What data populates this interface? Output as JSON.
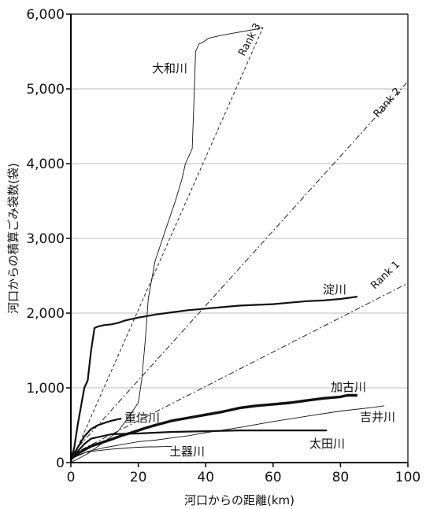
{
  "chart_data": {
    "type": "line",
    "xlabel": "河口からの距離(km)",
    "ylabel": "河口からの積算ごみ袋数(袋)",
    "xlim": [
      0,
      100
    ],
    "ylim": [
      0,
      6000
    ],
    "x_ticks": [
      "0",
      "20",
      "40",
      "60",
      "80",
      "100"
    ],
    "y_ticks": [
      "0",
      "1,000",
      "2,000",
      "3,000",
      "4,000",
      "5,000",
      "6,000"
    ],
    "grid": "horizontal",
    "reference_lines": [
      {
        "name": "Rank 1",
        "style": "dash-dot",
        "points": [
          [
            0,
            100
          ],
          [
            100,
            2400
          ]
        ]
      },
      {
        "name": "Rank 2",
        "style": "dash-dot",
        "points": [
          [
            0,
            100
          ],
          [
            100,
            5100
          ]
        ]
      },
      {
        "name": "Rank 3",
        "style": "dashed",
        "points": [
          [
            0,
            0
          ],
          [
            57,
            5820
          ]
        ]
      }
    ],
    "series": [
      {
        "name": "大和川",
        "weight": "thin",
        "x": [
          0,
          5,
          10,
          14,
          17,
          20,
          21,
          22,
          23,
          25,
          28,
          31,
          33,
          34,
          35,
          36,
          36.5,
          37,
          38,
          39,
          41,
          45,
          50,
          55,
          57
        ],
        "y": [
          0,
          120,
          280,
          420,
          600,
          800,
          1100,
          1600,
          2200,
          2700,
          3100,
          3500,
          3800,
          4000,
          4100,
          4200,
          4800,
          5500,
          5600,
          5620,
          5680,
          5720,
          5760,
          5800,
          5820
        ]
      },
      {
        "name": "淀川",
        "weight": "medium",
        "x": [
          0,
          1,
          2,
          3,
          4,
          5,
          6,
          7,
          8,
          9,
          10,
          12,
          14,
          16,
          18,
          20,
          25,
          30,
          35,
          40,
          45,
          50,
          55,
          60,
          65,
          70,
          75,
          80,
          85
        ],
        "y": [
          50,
          200,
          500,
          750,
          1000,
          1100,
          1500,
          1800,
          1820,
          1830,
          1840,
          1850,
          1870,
          1900,
          1920,
          1940,
          1980,
          2010,
          2040,
          2060,
          2080,
          2100,
          2110,
          2120,
          2140,
          2160,
          2170,
          2190,
          2220
        ]
      },
      {
        "name": "加古川",
        "weight": "thick",
        "x": [
          0,
          2,
          4,
          6,
          8,
          10,
          12,
          15,
          18,
          22,
          25,
          30,
          35,
          40,
          45,
          50,
          55,
          60,
          65,
          70,
          75,
          80,
          82,
          85
        ],
        "y": [
          50,
          120,
          170,
          220,
          250,
          280,
          310,
          360,
          400,
          460,
          500,
          560,
          600,
          640,
          680,
          730,
          760,
          780,
          800,
          830,
          860,
          880,
          900,
          900
        ]
      },
      {
        "name": "吉井川",
        "weight": "thin",
        "x": [
          0,
          5,
          10,
          15,
          20,
          25,
          30,
          35,
          40,
          50,
          60,
          70,
          80,
          90,
          93
        ],
        "y": [
          50,
          150,
          200,
          240,
          280,
          300,
          330,
          360,
          400,
          470,
          550,
          620,
          690,
          740,
          760
        ]
      },
      {
        "name": "重信川",
        "weight": "medium",
        "x": [
          0,
          2,
          4,
          6,
          8,
          10,
          12,
          14,
          15
        ],
        "y": [
          50,
          200,
          350,
          450,
          500,
          530,
          560,
          580,
          590
        ]
      },
      {
        "name": "太田川",
        "weight": "medium",
        "x": [
          0,
          2,
          4,
          6,
          8,
          10,
          12,
          20,
          30,
          40,
          50,
          60,
          70,
          76
        ],
        "y": [
          50,
          150,
          250,
          320,
          340,
          360,
          380,
          390,
          410,
          420,
          430,
          430,
          430,
          430
        ]
      },
      {
        "name": "土器川",
        "weight": "thin",
        "x": [
          0,
          2,
          4,
          6,
          8,
          10,
          12,
          15,
          18,
          20,
          23,
          25,
          28,
          30
        ],
        "y": [
          50,
          100,
          130,
          150,
          160,
          170,
          180,
          190,
          200,
          205,
          210,
          210,
          215,
          215
        ]
      }
    ]
  }
}
